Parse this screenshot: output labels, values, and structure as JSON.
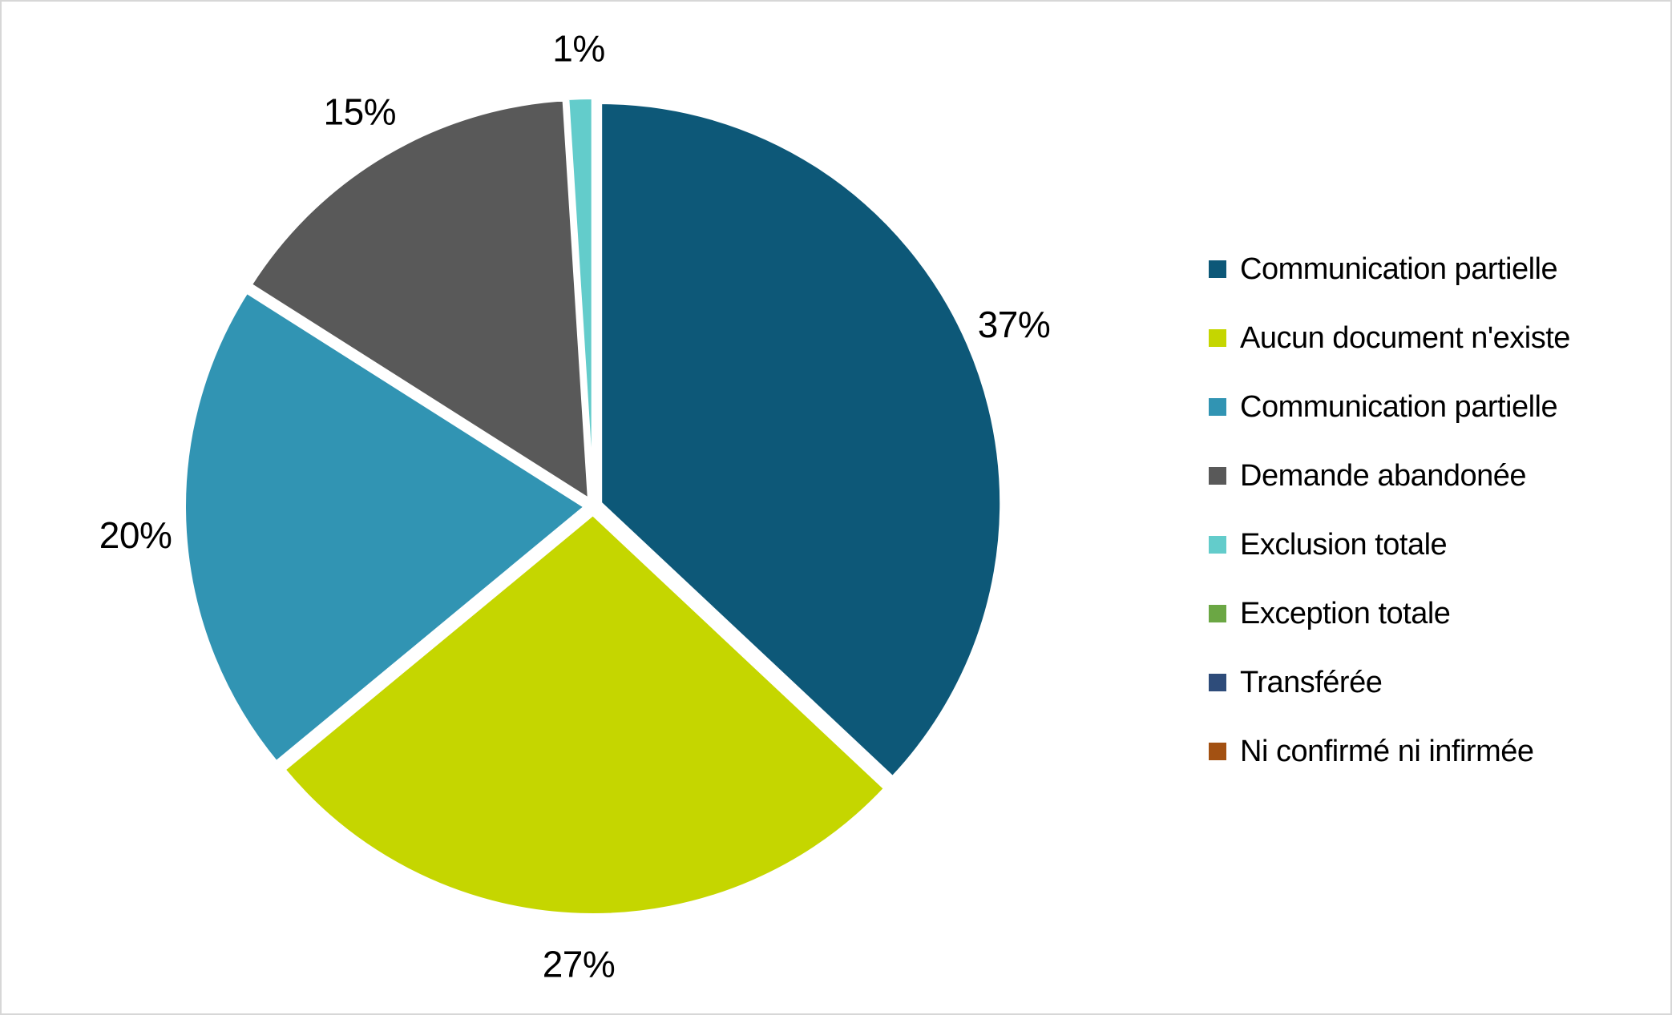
{
  "window": {
    "background_color": "#FFFFFF",
    "frame_border_color": "#D7D7D7"
  },
  "chart_data": {
    "type": "pie",
    "title": "",
    "legend_position": "right",
    "start_angle_deg": 0,
    "direction": "clockwise",
    "data_labels_style": "percent, outside end, black",
    "slice_border_color": "#FFFFFF",
    "series": [
      {
        "label": "Communication partielle",
        "value": 37,
        "display": "37%",
        "color": "#0D5878"
      },
      {
        "label": "Aucun document n'existe",
        "value": 27,
        "display": "27%",
        "color": "#C5D600"
      },
      {
        "label": "Communication partielle",
        "value": 20,
        "display": "20%",
        "color": "#3194B3"
      },
      {
        "label": "Demande abandonée",
        "value": 15,
        "display": "15%",
        "color": "#595959"
      },
      {
        "label": "Exclusion totale",
        "value": 1,
        "display": "1%",
        "color": "#63CCCB"
      },
      {
        "label": "Exception totale",
        "value": 0,
        "display": "",
        "color": "#6BA744"
      },
      {
        "label": "Transférée",
        "value": 0,
        "display": "",
        "color": "#2E4C7A"
      },
      {
        "label": "Ni confirmé ni infirmée",
        "value": 0,
        "display": "",
        "color": "#A35112"
      }
    ]
  }
}
